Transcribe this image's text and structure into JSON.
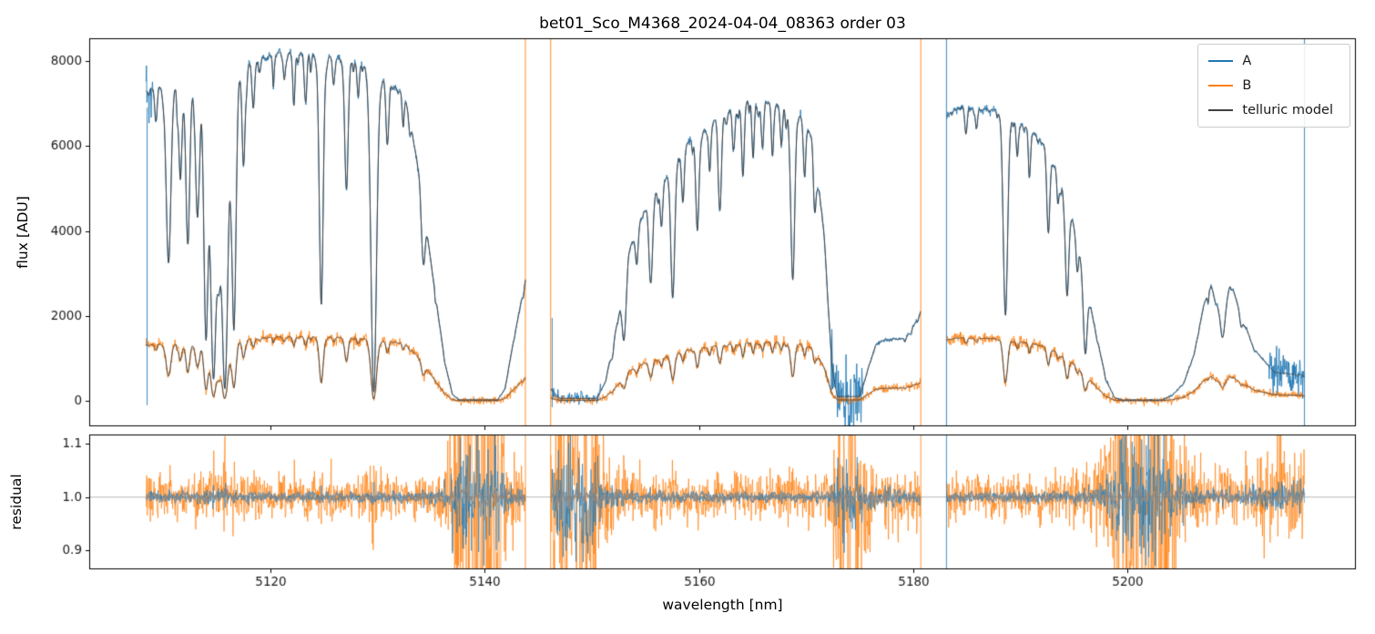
{
  "figure": {
    "title": "bet01_Sco_M4368_2024-04-04_08363  order 03",
    "xlabel": "wavelength [nm]",
    "flux_ylabel": "flux [ADU]",
    "residual_ylabel": "residual"
  },
  "legend": {
    "entries": [
      {
        "label": "A",
        "color": "#1f77b4"
      },
      {
        "label": "B",
        "color": "#ff7f0e"
      },
      {
        "label": "telluric model",
        "color": "#404040"
      }
    ]
  },
  "chart_data": {
    "type": "line",
    "title": "bet01_Sco_M4368_2024-04-04_08363  order 03",
    "xlabel": "wavelength [nm]",
    "xlim": [
      5103.1,
      5221.3
    ],
    "xticks": [
      5120,
      5140,
      5160,
      5180,
      5200
    ],
    "panels": [
      {
        "name": "flux",
        "ylabel": "flux [ADU]",
        "ylim": [
          -600,
          8536
        ],
        "yticks": [
          0,
          2000,
          4000,
          6000,
          8000
        ]
      },
      {
        "name": "residual",
        "ylabel": "residual",
        "ylim": [
          0.865,
          1.117
        ],
        "yticks": [
          0.9,
          1.0,
          1.1
        ],
        "hline": 1.0
      }
    ],
    "series_names": [
      "A",
      "B",
      "telluric model"
    ],
    "legend_position": "upper right",
    "grid": false,
    "colors": {
      "A": "#1f77b4",
      "B": "#ff7f0e",
      "telluric": "#404040",
      "residual_smooth": "#8a8a8a"
    },
    "segments": [
      [
        5108.4,
        5143.8
      ],
      [
        5146.2,
        5180.7
      ],
      [
        5183.1,
        5216.5
      ]
    ],
    "flux_ratio_B_over_A": [
      [
        5108,
        0.18
      ],
      [
        5125,
        0.185
      ],
      [
        5143,
        0.19
      ],
      [
        5146,
        0.2
      ],
      [
        5165,
        0.195
      ],
      [
        5181,
        0.21
      ],
      [
        5184,
        0.215
      ],
      [
        5200,
        0.21
      ],
      [
        5216.5,
        0.21
      ]
    ],
    "continuum_A": [
      [
        5108,
        7600
      ],
      [
        5110,
        7650
      ],
      [
        5114,
        7700
      ],
      [
        5117,
        7950
      ],
      [
        5119.5,
        8150
      ],
      [
        5121.5,
        8230
      ],
      [
        5123.5,
        8180
      ],
      [
        5126,
        8100
      ],
      [
        5129,
        7950
      ],
      [
        5131,
        7650
      ],
      [
        5134,
        7450
      ],
      [
        5140,
        7200
      ],
      [
        5143.8,
        7100
      ],
      [
        5146.2,
        7000
      ],
      [
        5150,
        6800
      ],
      [
        5154,
        6700
      ],
      [
        5158,
        6850
      ],
      [
        5162,
        7050
      ],
      [
        5165,
        7150
      ],
      [
        5168,
        7100
      ],
      [
        5172,
        6950
      ],
      [
        5177,
        6950
      ],
      [
        5180.7,
        7000
      ],
      [
        5183.1,
        7050
      ],
      [
        5187,
        7000
      ],
      [
        5190,
        6950
      ],
      [
        5193,
        6900
      ],
      [
        5200,
        6850
      ],
      [
        5209,
        6800
      ],
      [
        5216.5,
        6700
      ]
    ],
    "telluric_broad_transmission": [
      [
        5103,
        0.97
      ],
      [
        5108.4,
        0.96
      ],
      [
        5110,
        0.97
      ],
      [
        5114,
        0.97
      ],
      [
        5118,
        0.99
      ],
      [
        5121,
        1.0
      ],
      [
        5125,
        1.0
      ],
      [
        5128,
        0.995
      ],
      [
        5131,
        0.98
      ],
      [
        5132.5,
        0.96
      ],
      [
        5133.5,
        0.8
      ],
      [
        5135,
        0.44
      ],
      [
        5136.3,
        0.12
      ],
      [
        5137,
        0.02
      ],
      [
        5137.6,
        0.003
      ],
      [
        5141.2,
        0.003
      ],
      [
        5141.9,
        0.04
      ],
      [
        5142.6,
        0.18
      ],
      [
        5143.8,
        0.4
      ],
      [
        5146.2,
        0.04
      ],
      [
        5147,
        0.008
      ],
      [
        5150.5,
        0.008
      ],
      [
        5151.3,
        0.07
      ],
      [
        5152.4,
        0.28
      ],
      [
        5153.4,
        0.52
      ],
      [
        5155,
        0.68
      ],
      [
        5157,
        0.78
      ],
      [
        5158.9,
        0.88
      ],
      [
        5160.5,
        0.92
      ],
      [
        5162.7,
        0.965
      ],
      [
        5164.5,
        0.99
      ],
      [
        5166.5,
        0.99
      ],
      [
        5168,
        0.975
      ],
      [
        5169.5,
        0.95
      ],
      [
        5170.8,
        0.87
      ],
      [
        5171.7,
        0.55
      ],
      [
        5172.4,
        0.12
      ],
      [
        5172.9,
        0.015
      ],
      [
        5175,
        0.015
      ],
      [
        5175.7,
        0.1
      ],
      [
        5176.5,
        0.19
      ],
      [
        5177.5,
        0.21
      ],
      [
        5179.3,
        0.21
      ],
      [
        5180.3,
        0.27
      ],
      [
        5180.7,
        0.3
      ],
      [
        5183.1,
        0.955
      ],
      [
        5184.5,
        0.985
      ],
      [
        5187.5,
        0.98
      ],
      [
        5189.5,
        0.945
      ],
      [
        5190.8,
        0.925
      ],
      [
        5192.2,
        0.875
      ],
      [
        5193.7,
        0.77
      ],
      [
        5195,
        0.6
      ],
      [
        5196.2,
        0.4
      ],
      [
        5197,
        0.24
      ],
      [
        5198,
        0.07
      ],
      [
        5198.8,
        0.01
      ],
      [
        5199.5,
        0.003
      ],
      [
        5203.2,
        0.003
      ],
      [
        5204.2,
        0.02
      ],
      [
        5205.2,
        0.06
      ],
      [
        5206.2,
        0.16
      ],
      [
        5207.1,
        0.33
      ],
      [
        5207.8,
        0.4
      ],
      [
        5208.8,
        0.28
      ],
      [
        5209.6,
        0.41
      ],
      [
        5210.6,
        0.3
      ],
      [
        5211.8,
        0.18
      ],
      [
        5213.7,
        0.1
      ],
      [
        5216.5,
        0.09
      ]
    ],
    "telluric_lines": [
      [
        5109.3,
        0.1,
        0.1
      ],
      [
        5110.5,
        0.56,
        0.22
      ],
      [
        5111.6,
        0.28,
        0.16
      ],
      [
        5112.3,
        0.5,
        0.18
      ],
      [
        5113.2,
        0.42,
        0.18
      ],
      [
        5114,
        0.8,
        0.2
      ],
      [
        5114.7,
        0.93,
        0.28
      ],
      [
        5115.2,
        0.5,
        0.2
      ],
      [
        5115.75,
        0.96,
        0.3
      ],
      [
        5116.6,
        0.78,
        0.2
      ],
      [
        5117.5,
        0.3,
        0.14
      ],
      [
        5118.4,
        0.12,
        0.12
      ],
      [
        5120.3,
        0.05,
        0.1
      ],
      [
        5121.3,
        0.08,
        0.1
      ],
      [
        5122.2,
        0.15,
        0.1
      ],
      [
        5123.3,
        0.14,
        0.11
      ],
      [
        5124.75,
        0.72,
        0.18
      ],
      [
        5125.9,
        0.08,
        0.1
      ],
      [
        5127.1,
        0.37,
        0.16
      ],
      [
        5128.2,
        0.1,
        0.1
      ],
      [
        5129.65,
        0.97,
        0.26
      ],
      [
        5130.9,
        0.17,
        0.12
      ],
      [
        5132.4,
        0.1,
        0.1
      ],
      [
        5134.3,
        0.28,
        0.14
      ],
      [
        5151.9,
        0.2,
        0.12
      ],
      [
        5153,
        0.5,
        0.18
      ],
      [
        5154.2,
        0.2,
        0.12
      ],
      [
        5155.5,
        0.42,
        0.17
      ],
      [
        5156.5,
        0.2,
        0.12
      ],
      [
        5157.55,
        0.56,
        0.18
      ],
      [
        5158.5,
        0.2,
        0.12
      ],
      [
        5159.85,
        0.36,
        0.15
      ],
      [
        5161,
        0.17,
        0.1
      ],
      [
        5161.95,
        0.32,
        0.14
      ],
      [
        5163.2,
        0.14,
        0.1
      ],
      [
        5164.1,
        0.24,
        0.12
      ],
      [
        5165.05,
        0.19,
        0.11
      ],
      [
        5165.95,
        0.13,
        0.1
      ],
      [
        5166.85,
        0.17,
        0.1
      ],
      [
        5167.7,
        0.12,
        0.1
      ],
      [
        5168.75,
        0.58,
        0.18
      ],
      [
        5169.85,
        0.19,
        0.11
      ],
      [
        5170.8,
        0.26,
        0.12
      ],
      [
        5184.9,
        0.09,
        0.1
      ],
      [
        5185.9,
        0.07,
        0.1
      ],
      [
        5188.6,
        0.7,
        0.2
      ],
      [
        5189.7,
        0.12,
        0.1
      ],
      [
        5190.85,
        0.15,
        0.11
      ],
      [
        5192.6,
        0.32,
        0.14
      ],
      [
        5193.5,
        0.14,
        0.1
      ],
      [
        5194.35,
        0.48,
        0.16
      ],
      [
        5195.3,
        0.2,
        0.11
      ],
      [
        5196.05,
        0.62,
        0.18
      ],
      [
        5208.9,
        0.25,
        0.18
      ],
      [
        5210.6,
        0.15,
        0.12
      ]
    ],
    "artifact_spikes_top": [
      {
        "x": 5108.5,
        "series": "A",
        "full": false,
        "y0": -100,
        "y1": 6900
      },
      {
        "x": 5143.8,
        "series": "B",
        "full": true
      },
      {
        "x": 5146.15,
        "series": "B",
        "full": true
      },
      {
        "x": 5146.3,
        "series": "A",
        "full": false,
        "y0": -150,
        "y1": 1950
      },
      {
        "x": 5180.7,
        "series": "B",
        "full": true
      },
      {
        "x": 5183.1,
        "series": "A",
        "full": true
      },
      {
        "x": 5216.5,
        "series": "A",
        "full": true
      }
    ],
    "artifact_spikes_bottom": [
      {
        "x": 5143.8,
        "series": "B"
      },
      {
        "x": 5146.15,
        "series": "B"
      },
      {
        "x": 5180.7,
        "series": "B"
      },
      {
        "x": 5183.1,
        "series": "A"
      }
    ]
  }
}
